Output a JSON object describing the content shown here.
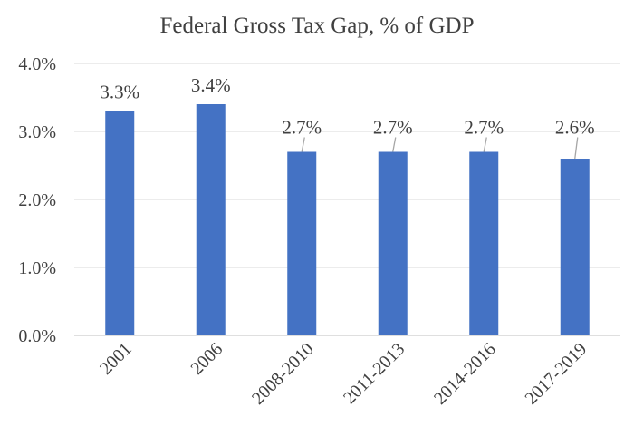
{
  "chart_data": {
    "type": "bar",
    "title": "Federal Gross Tax Gap, % of GDP",
    "xlabel": "",
    "ylabel": "",
    "categories": [
      "2001",
      "2006",
      "2008-2010",
      "2011-2013",
      "2014-2016",
      "2017-2019"
    ],
    "values": [
      3.3,
      3.4,
      2.7,
      2.7,
      2.7,
      2.6
    ],
    "data_labels": [
      "3.3%",
      "3.4%",
      "2.7%",
      "2.7%",
      "2.7%",
      "2.6%"
    ],
    "ylim": [
      0,
      4
    ],
    "yticks": [
      0,
      1,
      2,
      3,
      4
    ],
    "ytick_labels": [
      "0.0%",
      "1.0%",
      "2.0%",
      "3.0%",
      "4.0%"
    ],
    "grid": true,
    "legend": "none",
    "bar_color": "#4472C4",
    "grid_color": "#D9D9D9",
    "axis_color": "#BFBFBF",
    "text_color": "#404040",
    "leader_line_color": "#A6A6A6"
  }
}
